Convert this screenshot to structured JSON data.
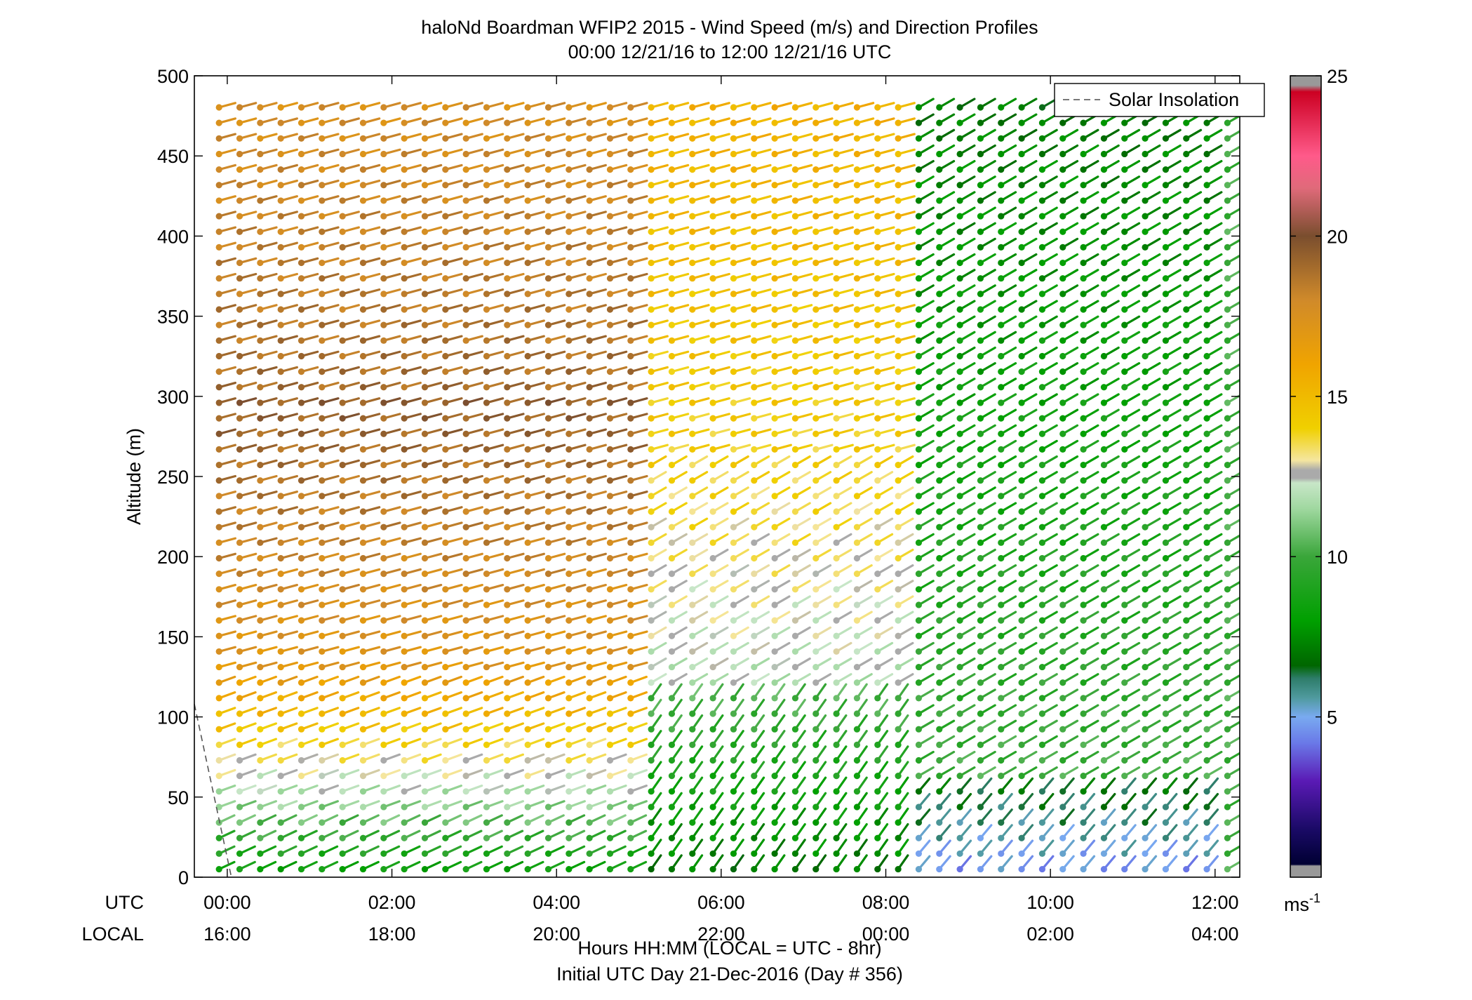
{
  "figure": {
    "title_line1": "haloNd Boardman WFIP2 2015 - Wind Speed (m/s) and Direction Profiles",
    "title_line2": "00:00 12/21/16 to 12:00 12/21/16  UTC",
    "utc_row_label": "UTC",
    "local_row_label": "LOCAL",
    "xlabel": "Hours HH:MM  (LOCAL = UTC - 8hr)",
    "footer": "Initial UTC Day 21-Dec-2016 (Day # 356)",
    "ylabel": "Altitude (m)",
    "colorbar_unit_base": "ms",
    "colorbar_unit_exp": "-1"
  },
  "chart_data": {
    "type": "scatter",
    "title": "haloNd Boardman WFIP2 2015 - Wind Speed (m/s) and Direction Profiles",
    "subtitle": "00:00 12/21/16 to 12:00 12/21/16  UTC",
    "xlabel": "Hours HH:MM  (LOCAL = UTC - 8hr)",
    "ylabel": "Altitude (m)",
    "xlim_hours": [
      -0.4,
      12.3
    ],
    "ylim": [
      0,
      500
    ],
    "x_ticks_hours": [
      0,
      2,
      4,
      6,
      8,
      10,
      12
    ],
    "x_tick_labels_utc": [
      "00:00",
      "02:00",
      "04:00",
      "06:00",
      "08:00",
      "10:00",
      "12:00"
    ],
    "x_tick_labels_local": [
      "16:00",
      "18:00",
      "20:00",
      "22:00",
      "00:00",
      "02:00",
      "04:00"
    ],
    "y_ticks": [
      0,
      50,
      100,
      150,
      200,
      250,
      300,
      350,
      400,
      450,
      500
    ],
    "colorbar": {
      "label": "ms-1",
      "range": [
        0,
        25
      ],
      "ticks": [
        5,
        10,
        15,
        20,
        25
      ],
      "stops": [
        {
          "v": 0.0,
          "c": "#999999"
        },
        {
          "v": 0.35,
          "c": "#999999"
        },
        {
          "v": 0.4,
          "c": "#000033"
        },
        {
          "v": 1.5,
          "c": "#1a0a66"
        },
        {
          "v": 3.0,
          "c": "#5a1ab5"
        },
        {
          "v": 4.2,
          "c": "#6a7ae8"
        },
        {
          "v": 5.0,
          "c": "#79aaf0"
        },
        {
          "v": 5.6,
          "c": "#4f9a9e"
        },
        {
          "v": 6.2,
          "c": "#2e7d6a"
        },
        {
          "v": 6.6,
          "c": "#006600"
        },
        {
          "v": 8.0,
          "c": "#00a000"
        },
        {
          "v": 10.0,
          "c": "#3aa63a"
        },
        {
          "v": 11.5,
          "c": "#a0d8a0"
        },
        {
          "v": 12.3,
          "c": "#c8e6c8"
        },
        {
          "v": 12.45,
          "c": "#aaaaaa"
        },
        {
          "v": 12.7,
          "c": "#aaaaaa"
        },
        {
          "v": 13.0,
          "c": "#f5e6a0"
        },
        {
          "v": 14.0,
          "c": "#f0d000"
        },
        {
          "v": 16.0,
          "c": "#f0a400"
        },
        {
          "v": 18.0,
          "c": "#d08a2a"
        },
        {
          "v": 20.0,
          "c": "#7a4e2e"
        },
        {
          "v": 21.5,
          "c": "#e06a7a"
        },
        {
          "v": 22.5,
          "c": "#ff5a8a"
        },
        {
          "v": 24.5,
          "c": "#cc0022"
        },
        {
          "v": 24.7,
          "c": "#999999"
        },
        {
          "v": 25.0,
          "c": "#999999"
        }
      ]
    },
    "legend": {
      "entries": [
        "Solar Insolation"
      ],
      "placement": "top-right",
      "style": "dashed gray line"
    },
    "solar_insolation_line": {
      "x_hours": [
        -0.4,
        0.05
      ],
      "y_alt": [
        108,
        0
      ]
    },
    "wind_profile_grid": {
      "time_start_hours": -0.1,
      "time_step_hours": 0.25,
      "time_count": 50,
      "altitude_start_m": 5,
      "altitude_step_m": 9.7,
      "altitude_count": 50,
      "representation": "wind barbs colored by speed; direction predominantly from the south-west, veering to south-south-west near the surface",
      "speed_regimes_mps": [
        {
          "t_hours": [
            -0.1,
            5.1
          ],
          "alt_m": [
            0,
            40
          ],
          "speed": [
            8,
            11
          ],
          "dir_deg": 245
        },
        {
          "t_hours": [
            -0.1,
            5.1
          ],
          "alt_m": [
            40,
            130
          ],
          "speed": [
            11,
            17
          ],
          "dir_deg": 250
        },
        {
          "t_hours": [
            -0.1,
            5.1
          ],
          "alt_m": [
            130,
            300
          ],
          "speed": [
            17,
            19.5
          ],
          "dir_deg": 255
        },
        {
          "t_hours": [
            -0.1,
            5.1
          ],
          "alt_m": [
            300,
            495
          ],
          "speed": [
            19,
            17.5
          ],
          "dir_deg": 255
        },
        {
          "t_hours": [
            5.1,
            8.2
          ],
          "alt_m": [
            0,
            120
          ],
          "speed": [
            7,
            10.5
          ],
          "dir_deg": 215
        },
        {
          "t_hours": [
            5.1,
            8.2
          ],
          "alt_m": [
            120,
            260
          ],
          "speed": [
            12,
            14
          ],
          "dir_deg": 240
        },
        {
          "t_hours": [
            5.1,
            8.2
          ],
          "alt_m": [
            260,
            495
          ],
          "speed": [
            14,
            15.5
          ],
          "dir_deg": 255
        },
        {
          "t_hours": [
            8.2,
            12.1
          ],
          "alt_m": [
            0,
            60
          ],
          "speed": [
            4.5,
            7
          ],
          "dir_deg": 220
        },
        {
          "t_hours": [
            8.2,
            12.1
          ],
          "alt_m": [
            60,
            495
          ],
          "speed": [
            10,
            7
          ],
          "dir_deg": 240
        }
      ]
    }
  }
}
